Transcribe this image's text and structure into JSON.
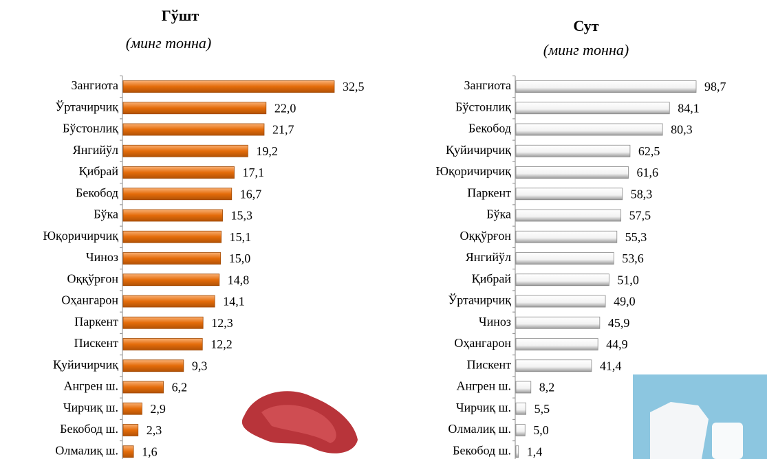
{
  "chart_data": [
    {
      "type": "barh",
      "title": "Гўшт",
      "subtitle": "(минг тонна)",
      "color": "#e46c0a",
      "categories": [
        "Зангиота",
        "Ўртачирчиқ",
        "Бўстонлиқ",
        "Янгийўл",
        "Қибрай",
        "Бекобод",
        "Бўка",
        "Юқоричирчиқ",
        "Чиноз",
        "Оққўрғон",
        "Оҳангарон",
        "Паркент",
        "Пискент",
        "Қуйичирчиқ",
        "Ангрен ш.",
        "Чирчиқ ш.",
        "Бекобод ш.",
        "Олмалиқ ш."
      ],
      "values": [
        32.5,
        22.0,
        21.7,
        19.2,
        17.1,
        16.7,
        15.3,
        15.1,
        15.0,
        14.8,
        14.1,
        12.3,
        12.2,
        9.3,
        6.2,
        2.9,
        2.3,
        1.6
      ],
      "value_labels": [
        "32,5",
        "22,0",
        "21,7",
        "19,2",
        "17,1",
        "16,7",
        "15,3",
        "15,1",
        "15,0",
        "14,8",
        "14,1",
        "12,3",
        "12,2",
        "9,3",
        "6,2",
        "2,9",
        "2,3",
        "1,6"
      ]
    },
    {
      "type": "barh",
      "title": "Сут",
      "subtitle": "(минг тонна)",
      "color": "#f2f2f2",
      "categories": [
        "Зангиота",
        "Бўстонлиқ",
        "Бекобод",
        "Қуйичирчиқ",
        "Юқоричирчиқ",
        "Паркент",
        "Бўка",
        "Оққўрғон",
        "Янгийўл",
        "Қибрай",
        "Ўртачирчиқ",
        "Чиноз",
        "Оҳангарон",
        "Пискент",
        "Ангрен ш.",
        "Чирчиқ ш.",
        "Олмалиқ ш.",
        "Бекобод ш."
      ],
      "values": [
        98.7,
        84.1,
        80.3,
        62.5,
        61.6,
        58.3,
        57.5,
        55.3,
        53.6,
        51.0,
        49.0,
        45.9,
        44.9,
        41.4,
        8.2,
        5.5,
        5.0,
        1.4
      ],
      "value_labels": [
        "98,7",
        "84,1",
        "80,3",
        "62,5",
        "61,6",
        "58,3",
        "57,5",
        "55,3",
        "53,6",
        "51,0",
        "49,0",
        "45,9",
        "44,9",
        "41,4",
        "8,2",
        "5,5",
        "5,0",
        "1,4"
      ]
    }
  ]
}
